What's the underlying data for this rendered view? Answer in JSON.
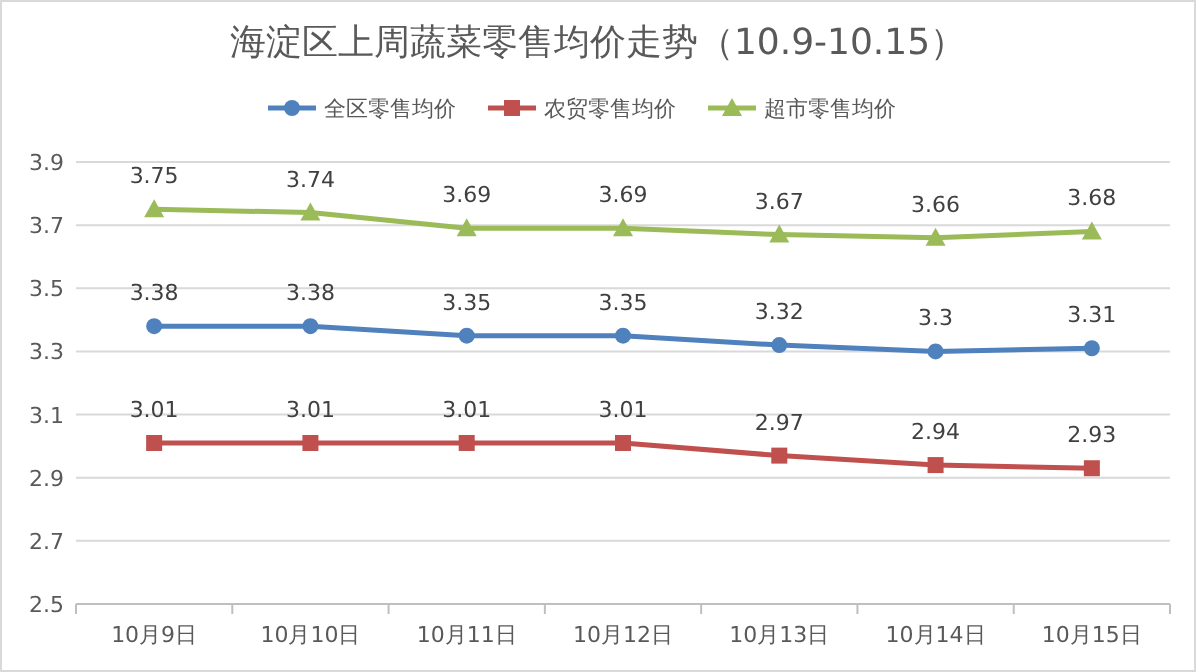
{
  "chart_data": {
    "type": "line",
    "title": "海淀区上周蔬菜零售均价走势（10.9-10.15）",
    "categories": [
      "10月9日",
      "10月10日",
      "10月11日",
      "10月12日",
      "10月13日",
      "10月14日",
      "10月15日"
    ],
    "series": [
      {
        "name": "全区零售均价",
        "color": "#4f81bd",
        "marker": "circle",
        "values": [
          3.38,
          3.38,
          3.35,
          3.35,
          3.32,
          3.3,
          3.31
        ]
      },
      {
        "name": "农贸零售均价",
        "color": "#c0504d",
        "marker": "square",
        "values": [
          3.01,
          3.01,
          3.01,
          3.01,
          2.97,
          2.94,
          2.93
        ]
      },
      {
        "name": "超市零售均价",
        "color": "#9bbb59",
        "marker": "triangle",
        "values": [
          3.75,
          3.74,
          3.69,
          3.69,
          3.67,
          3.66,
          3.68
        ]
      }
    ],
    "ylim": [
      2.5,
      3.9
    ],
    "yticks": [
      2.5,
      2.7,
      2.9,
      3.1,
      3.3,
      3.5,
      3.7,
      3.9
    ],
    "grid": "y",
    "legend": "top",
    "data_labels": true,
    "line_style": "solid"
  }
}
